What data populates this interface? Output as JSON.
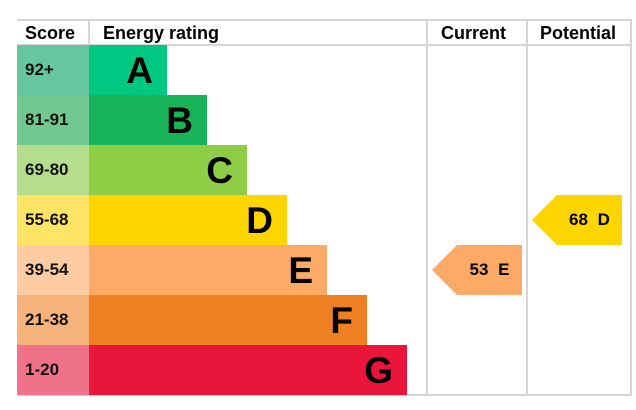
{
  "chart_data": {
    "type": "table",
    "headers": {
      "score": "Score",
      "rating": "Energy rating",
      "current": "Current",
      "potential": "Potential"
    },
    "bands": [
      {
        "score": "92+",
        "letter": "A",
        "color": "#00c781",
        "light": "#66c6a0"
      },
      {
        "score": "81-91",
        "letter": "B",
        "color": "#19b459",
        "light": "#72c990"
      },
      {
        "score": "69-80",
        "letter": "C",
        "color": "#8dce46",
        "light": "#b5de8c"
      },
      {
        "score": "55-68",
        "letter": "D",
        "color": "#ffd500",
        "light": "#ffe465"
      },
      {
        "score": "39-54",
        "letter": "E",
        "color": "#fcaa65",
        "light": "#fdcca3"
      },
      {
        "score": "21-38",
        "letter": "F",
        "color": "#ef8023",
        "light": "#f5b37b"
      },
      {
        "score": "1-20",
        "letter": "G",
        "color": "#e9153b",
        "light": "#f07289"
      }
    ],
    "current": {
      "value": 53,
      "letter": "E",
      "label": "53 E",
      "color": "#fcaa65"
    },
    "potential": {
      "value": 68,
      "letter": "D",
      "label": "68 D",
      "color": "#ffd500"
    }
  }
}
